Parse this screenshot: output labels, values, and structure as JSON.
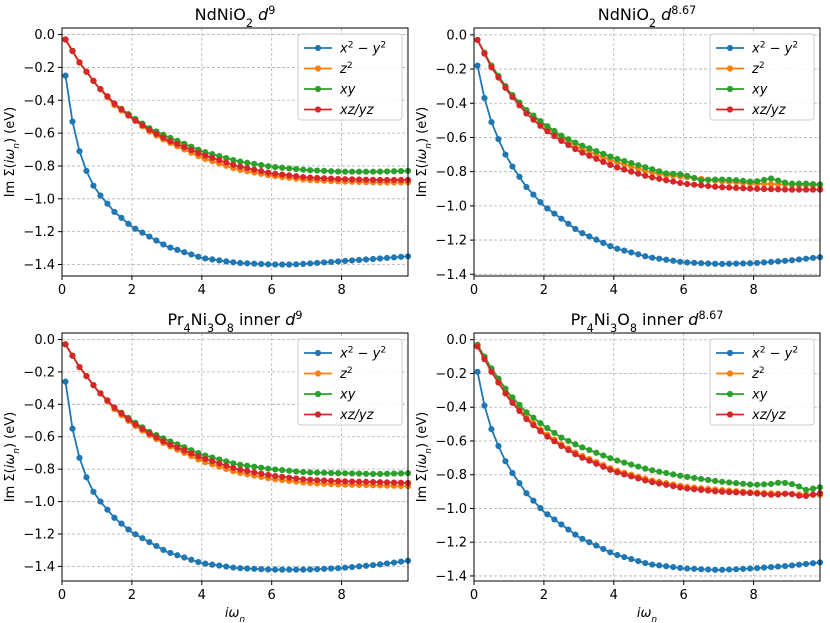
{
  "colors": {
    "blue": "#1f77b4",
    "orange": "#ff7f0e",
    "green": "#2ca02c",
    "red": "#d62728",
    "grid": "#b0b0b0"
  },
  "chart_data": [
    {
      "type": "line",
      "title": "NdNiO₂ d⁹",
      "xlabel": "",
      "ylabel": "Im Σ(iωn) (eV)",
      "xlim": [
        0,
        9.9
      ],
      "ylim": [
        -1.47,
        0.04
      ],
      "xticks": [
        0,
        2,
        4,
        6,
        8
      ],
      "yticks": [
        0.0,
        -0.2,
        -0.4,
        -0.6,
        -0.8,
        -1.0,
        -1.2,
        -1.4
      ],
      "xtick_labels": [
        "0",
        "2",
        "4",
        "6",
        "8"
      ],
      "ytick_labels": [
        "0.0",
        "−0.2",
        "−0.4",
        "−0.6",
        "−0.8",
        "−1.0",
        "−1.2",
        "−1.4"
      ],
      "legend": [
        "x² − y²",
        "z²",
        "xy",
        "xz/yz"
      ],
      "series": [
        {
          "name": "x² − y²",
          "color": "blue",
          "x": [
            0.1,
            0.3,
            0.5,
            0.7,
            0.9,
            1.1,
            1.5,
            2.0,
            3.0,
            4.0,
            5.0,
            6.0,
            6.6,
            7.0,
            8.0,
            9.0,
            9.9
          ],
          "y": [
            -0.25,
            -0.53,
            -0.71,
            -0.83,
            -0.92,
            -0.98,
            -1.08,
            -1.17,
            -1.29,
            -1.36,
            -1.39,
            -1.4,
            -1.4,
            -1.395,
            -1.38,
            -1.365,
            -1.35
          ]
        },
        {
          "name": "z²",
          "color": "orange",
          "x": [
            0.1,
            0.5,
            1.0,
            1.5,
            2.0,
            2.5,
            3.0,
            4.0,
            5.0,
            6.0,
            7.0,
            8.0,
            9.0,
            9.9
          ],
          "y": [
            -0.03,
            -0.17,
            -0.31,
            -0.43,
            -0.51,
            -0.59,
            -0.65,
            -0.75,
            -0.82,
            -0.86,
            -0.885,
            -0.895,
            -0.9,
            -0.9
          ]
        },
        {
          "name": "xy",
          "color": "green",
          "x": [
            0.1,
            0.5,
            1.0,
            1.5,
            2.0,
            2.5,
            3.0,
            4.0,
            5.0,
            6.0,
            7.0,
            8.0,
            9.0,
            9.9
          ],
          "y": [
            -0.03,
            -0.17,
            -0.31,
            -0.42,
            -0.5,
            -0.57,
            -0.62,
            -0.71,
            -0.77,
            -0.805,
            -0.825,
            -0.835,
            -0.835,
            -0.83
          ]
        },
        {
          "name": "xz/yz",
          "color": "red",
          "x": [
            0.1,
            0.5,
            1.0,
            1.5,
            2.0,
            2.5,
            3.0,
            4.0,
            5.0,
            6.0,
            7.0,
            8.0,
            9.0,
            9.9
          ],
          "y": [
            -0.03,
            -0.17,
            -0.31,
            -0.42,
            -0.51,
            -0.58,
            -0.64,
            -0.73,
            -0.8,
            -0.845,
            -0.87,
            -0.88,
            -0.885,
            -0.885
          ]
        }
      ]
    },
    {
      "type": "line",
      "title": "NdNiO₂ d⁸·⁶⁷",
      "xlabel": "",
      "ylabel": "Im Σ(iωn) (eV)",
      "xlim": [
        0,
        9.9
      ],
      "ylim": [
        -1.41,
        0.04
      ],
      "xticks": [
        0,
        2,
        4,
        6,
        8
      ],
      "yticks": [
        0.0,
        -0.2,
        -0.4,
        -0.6,
        -0.8,
        -1.0,
        -1.2,
        -1.4
      ],
      "xtick_labels": [
        "0",
        "2",
        "4",
        "6",
        "8"
      ],
      "ytick_labels": [
        "0.0",
        "−0.2",
        "−0.4",
        "−0.6",
        "−0.8",
        "−1.0",
        "−1.2",
        "−1.4"
      ],
      "legend": [
        "x² − y²",
        "z²",
        "xy",
        "xz/yz"
      ],
      "series": [
        {
          "name": "x² − y²",
          "color": "blue",
          "x": [
            0.1,
            0.3,
            0.5,
            0.7,
            0.9,
            1.1,
            1.5,
            2.0,
            3.0,
            4.0,
            5.0,
            6.0,
            7.0,
            8.0,
            9.0,
            9.9
          ],
          "y": [
            -0.18,
            -0.37,
            -0.51,
            -0.61,
            -0.7,
            -0.77,
            -0.89,
            -1.0,
            -1.15,
            -1.245,
            -1.3,
            -1.33,
            -1.34,
            -1.335,
            -1.32,
            -1.3
          ]
        },
        {
          "name": "z²",
          "color": "orange",
          "x": [
            0.1,
            0.5,
            1.0,
            1.5,
            2.0,
            2.5,
            3.0,
            4.0,
            5.0,
            5.5,
            6.0,
            7.0,
            8.0,
            9.0,
            9.9
          ],
          "y": [
            -0.03,
            -0.18,
            -0.33,
            -0.44,
            -0.53,
            -0.6,
            -0.66,
            -0.74,
            -0.8,
            -0.82,
            -0.83,
            -0.855,
            -0.87,
            -0.875,
            -0.88
          ]
        },
        {
          "name": "xy",
          "color": "green",
          "x": [
            0.1,
            0.5,
            1.0,
            1.5,
            2.0,
            2.5,
            3.0,
            4.0,
            5.0,
            5.5,
            5.9,
            6.2,
            6.5,
            7.0,
            7.5,
            8.0,
            8.5,
            9.0,
            9.5,
            9.9
          ],
          "y": [
            -0.03,
            -0.18,
            -0.33,
            -0.44,
            -0.52,
            -0.59,
            -0.64,
            -0.72,
            -0.78,
            -0.81,
            -0.815,
            -0.83,
            -0.85,
            -0.845,
            -0.85,
            -0.86,
            -0.84,
            -0.87,
            -0.87,
            -0.875
          ]
        },
        {
          "name": "xz/yz",
          "color": "red",
          "x": [
            0.1,
            0.5,
            1.0,
            1.5,
            2.0,
            2.5,
            3.0,
            4.0,
            5.0,
            6.0,
            7.0,
            8.0,
            9.0,
            9.9
          ],
          "y": [
            -0.03,
            -0.19,
            -0.34,
            -0.46,
            -0.55,
            -0.62,
            -0.68,
            -0.77,
            -0.83,
            -0.87,
            -0.89,
            -0.9,
            -0.905,
            -0.905
          ]
        }
      ]
    },
    {
      "type": "line",
      "title": "Pr₄Ni₃O₈ inner d⁹",
      "xlabel": "iωn",
      "ylabel": "Im Σ(iωn) (eV)",
      "xlim": [
        0,
        9.9
      ],
      "ylim": [
        -1.49,
        0.04
      ],
      "xticks": [
        0,
        2,
        4,
        6,
        8
      ],
      "yticks": [
        0.0,
        -0.2,
        -0.4,
        -0.6,
        -0.8,
        -1.0,
        -1.2,
        -1.4
      ],
      "xtick_labels": [
        "0",
        "2",
        "4",
        "6",
        "8"
      ],
      "ytick_labels": [
        "0.0",
        "−0.2",
        "−0.4",
        "−0.6",
        "−0.8",
        "−1.0",
        "−1.2",
        "−1.4"
      ],
      "legend": [
        "x² − y²",
        "z²",
        "xy",
        "xz/yz"
      ],
      "series": [
        {
          "name": "x² − y²",
          "color": "blue",
          "x": [
            0.1,
            0.3,
            0.5,
            0.7,
            0.9,
            1.1,
            1.5,
            2.0,
            3.0,
            4.0,
            5.0,
            6.0,
            7.0,
            8.0,
            9.0,
            9.9
          ],
          "y": [
            -0.26,
            -0.55,
            -0.73,
            -0.85,
            -0.94,
            -1.0,
            -1.1,
            -1.19,
            -1.31,
            -1.38,
            -1.41,
            -1.42,
            -1.42,
            -1.41,
            -1.39,
            -1.365
          ]
        },
        {
          "name": "z²",
          "color": "orange",
          "x": [
            0.1,
            0.5,
            1.0,
            1.5,
            2.0,
            2.5,
            3.0,
            4.0,
            5.0,
            6.0,
            7.0,
            8.0,
            9.0,
            9.9
          ],
          "y": [
            -0.03,
            -0.17,
            -0.31,
            -0.43,
            -0.52,
            -0.59,
            -0.65,
            -0.75,
            -0.82,
            -0.86,
            -0.885,
            -0.895,
            -0.9,
            -0.905
          ]
        },
        {
          "name": "xy",
          "color": "green",
          "x": [
            0.1,
            0.5,
            1.0,
            1.5,
            2.0,
            2.5,
            3.0,
            4.0,
            5.0,
            6.0,
            7.0,
            8.0,
            9.0,
            9.9
          ],
          "y": [
            -0.03,
            -0.17,
            -0.31,
            -0.42,
            -0.5,
            -0.57,
            -0.62,
            -0.71,
            -0.77,
            -0.8,
            -0.82,
            -0.825,
            -0.83,
            -0.825
          ]
        },
        {
          "name": "xz/yz",
          "color": "red",
          "x": [
            0.1,
            0.5,
            1.0,
            1.5,
            2.0,
            2.5,
            3.0,
            4.0,
            5.0,
            6.0,
            7.0,
            8.0,
            9.0,
            9.9
          ],
          "y": [
            -0.03,
            -0.17,
            -0.31,
            -0.42,
            -0.51,
            -0.58,
            -0.64,
            -0.73,
            -0.8,
            -0.84,
            -0.865,
            -0.875,
            -0.88,
            -0.885
          ]
        }
      ]
    },
    {
      "type": "line",
      "title": "Pr₄Ni₃O₈ inner d⁸·⁶⁷",
      "xlabel": "iωn",
      "ylabel": "Im Σ(iωn) (eV)",
      "xlim": [
        0,
        9.9
      ],
      "ylim": [
        -1.43,
        0.04
      ],
      "xticks": [
        0,
        2,
        4,
        6,
        8
      ],
      "yticks": [
        0.0,
        -0.2,
        -0.4,
        -0.6,
        -0.8,
        -1.0,
        -1.2,
        -1.4
      ],
      "xtick_labels": [
        "0",
        "2",
        "4",
        "6",
        "8"
      ],
      "ytick_labels": [
        "0.0",
        "−0.2",
        "−0.4",
        "−0.6",
        "−0.8",
        "−1.0",
        "−1.2",
        "−1.4"
      ],
      "legend": [
        "x² − y²",
        "z²",
        "xy",
        "xz/yz"
      ],
      "series": [
        {
          "name": "x² − y²",
          "color": "blue",
          "x": [
            0.1,
            0.3,
            0.5,
            0.7,
            0.9,
            1.1,
            1.5,
            2.0,
            3.0,
            4.0,
            5.0,
            6.0,
            7.0,
            8.0,
            9.0,
            9.9
          ],
          "y": [
            -0.19,
            -0.39,
            -0.53,
            -0.63,
            -0.72,
            -0.79,
            -0.91,
            -1.02,
            -1.17,
            -1.27,
            -1.33,
            -1.355,
            -1.365,
            -1.355,
            -1.34,
            -1.32
          ]
        },
        {
          "name": "z²",
          "color": "orange",
          "x": [
            0.1,
            0.5,
            1.0,
            1.5,
            2.0,
            2.5,
            3.0,
            4.0,
            5.0,
            6.0,
            7.0,
            8.0,
            9.0,
            9.9
          ],
          "y": [
            -0.03,
            -0.18,
            -0.34,
            -0.46,
            -0.55,
            -0.62,
            -0.68,
            -0.77,
            -0.83,
            -0.87,
            -0.89,
            -0.905,
            -0.915,
            -0.92
          ]
        },
        {
          "name": "xy",
          "color": "green",
          "x": [
            0.1,
            0.5,
            1.0,
            1.5,
            2.0,
            2.5,
            3.0,
            4.0,
            5.0,
            6.0,
            7.0,
            8.0,
            8.5,
            8.8,
            9.2,
            9.5,
            9.9
          ],
          "y": [
            -0.03,
            -0.17,
            -0.32,
            -0.43,
            -0.51,
            -0.58,
            -0.63,
            -0.71,
            -0.77,
            -0.81,
            -0.84,
            -0.86,
            -0.855,
            -0.845,
            -0.86,
            -0.89,
            -0.875
          ]
        },
        {
          "name": "xz/yz",
          "color": "red",
          "x": [
            0.1,
            0.5,
            1.0,
            1.5,
            2.0,
            2.5,
            3.0,
            4.0,
            5.0,
            6.0,
            7.0,
            8.0,
            8.6,
            9.0,
            9.4,
            9.9
          ],
          "y": [
            -0.04,
            -0.19,
            -0.35,
            -0.47,
            -0.56,
            -0.63,
            -0.69,
            -0.78,
            -0.84,
            -0.88,
            -0.9,
            -0.91,
            -0.92,
            -0.91,
            -0.93,
            -0.91
          ]
        }
      ]
    }
  ]
}
